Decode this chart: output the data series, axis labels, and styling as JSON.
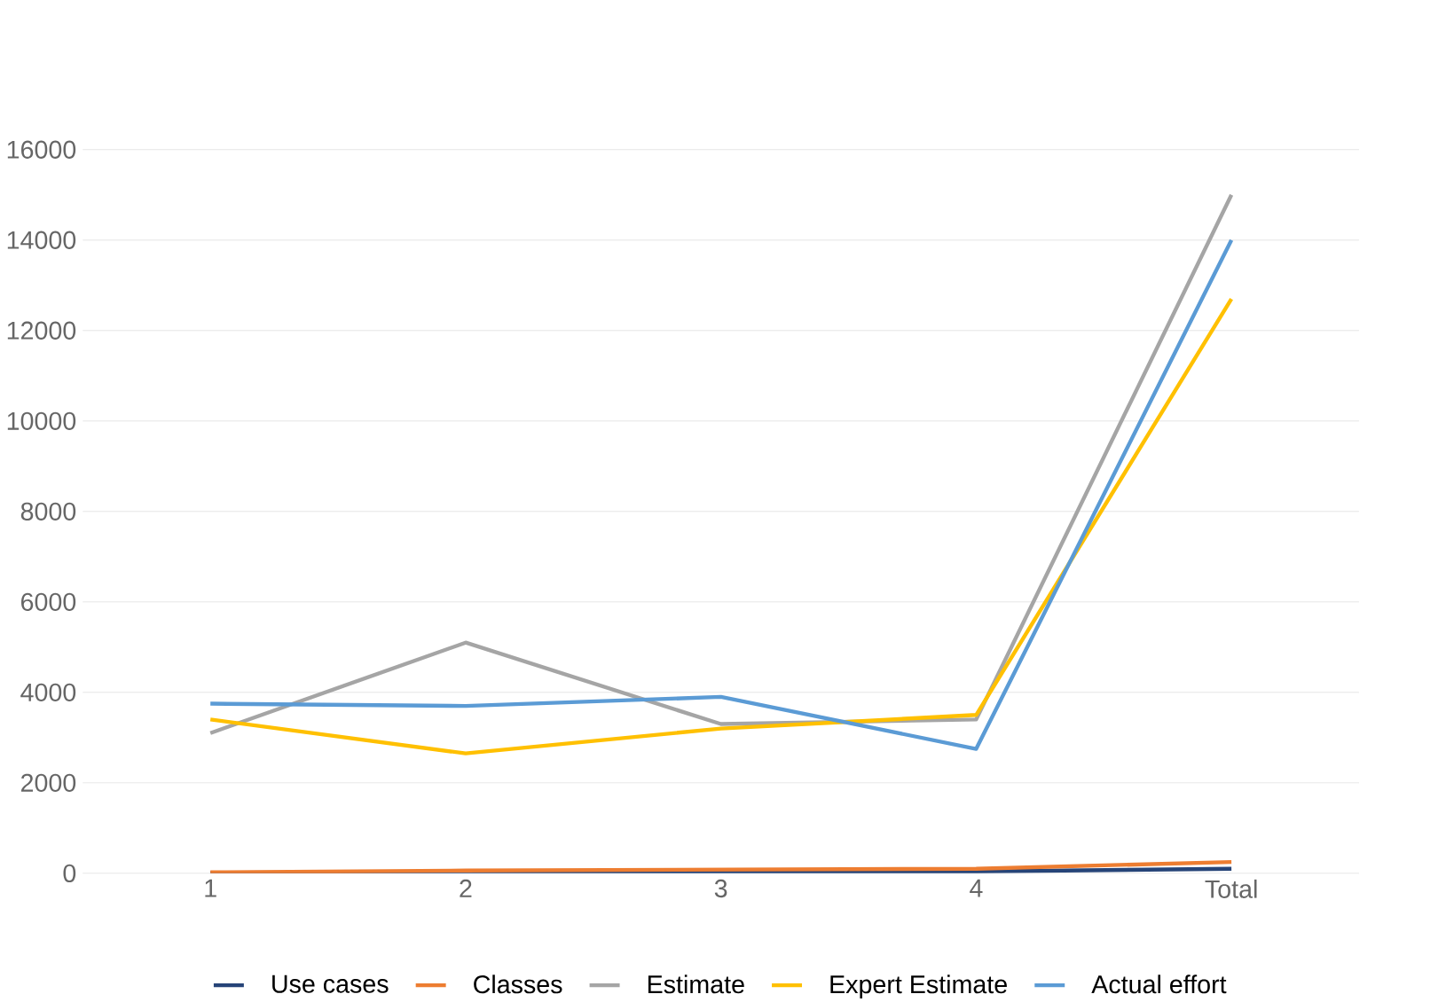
{
  "chart_data": {
    "type": "line",
    "categories": [
      "1",
      "2",
      "3",
      "4",
      "Total"
    ],
    "series": [
      {
        "name": "Use cases",
        "color": "#264478",
        "values": [
          10,
          20,
          30,
          40,
          100
        ]
      },
      {
        "name": "Classes",
        "color": "#ed7d31",
        "values": [
          20,
          60,
          80,
          100,
          250
        ]
      },
      {
        "name": "Estimate",
        "color": "#a5a5a5",
        "values": [
          3100,
          5100,
          3300,
          3400,
          15000
        ]
      },
      {
        "name": "Expert Estimate",
        "color": "#ffc000",
        "values": [
          3400,
          2650,
          3200,
          3500,
          12700
        ]
      },
      {
        "name": "Actual effort",
        "color": "#5b9bd5",
        "values": [
          3750,
          3700,
          3900,
          2750,
          14000
        ]
      }
    ],
    "ylim": [
      0,
      16000
    ],
    "yticks": [
      0,
      2000,
      4000,
      6000,
      8000,
      10000,
      12000,
      14000,
      16000
    ],
    "grid": "y",
    "legend": "bottom",
    "marker": "none",
    "line_style": "solid"
  }
}
